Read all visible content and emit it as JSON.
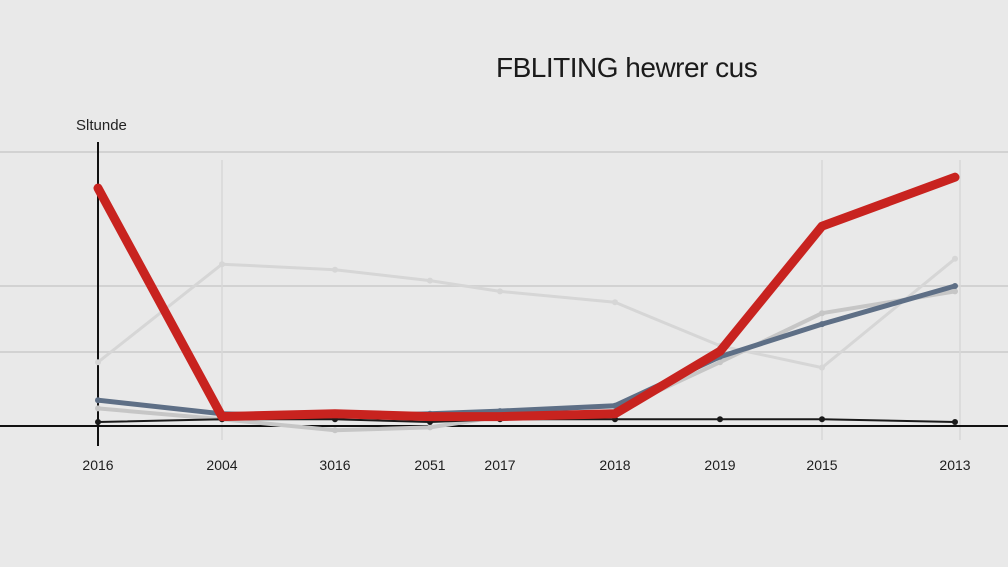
{
  "chart_data": {
    "type": "line",
    "title": "FBLITING hewrer cus",
    "ylabel": "Sltunde",
    "xlabel": "",
    "grid": true,
    "categories": [
      "2016",
      "2004",
      "3016",
      "2051",
      "2017",
      "2018",
      "2019",
      "2015",
      "2013"
    ],
    "ylim": [
      0,
      100
    ],
    "series": [
      {
        "color": "#c8231f",
        "values": [
          86,
          2,
          3,
          2,
          2,
          3,
          26,
          72,
          90
        ]
      },
      {
        "color": "#5e6f86",
        "values": [
          8,
          3,
          2,
          3,
          4,
          6,
          24,
          36,
          50
        ]
      },
      {
        "color": "#c6c6c6",
        "values": [
          5,
          1,
          -3,
          -2,
          2,
          4,
          22,
          40,
          48
        ]
      },
      {
        "color": "#d6d6d6",
        "values": [
          22,
          58,
          56,
          52,
          48,
          44,
          28,
          20,
          60
        ]
      },
      {
        "color": "#1a1a1a",
        "values": [
          0,
          1,
          1,
          0,
          1,
          1,
          1,
          1,
          0
        ]
      }
    ]
  }
}
